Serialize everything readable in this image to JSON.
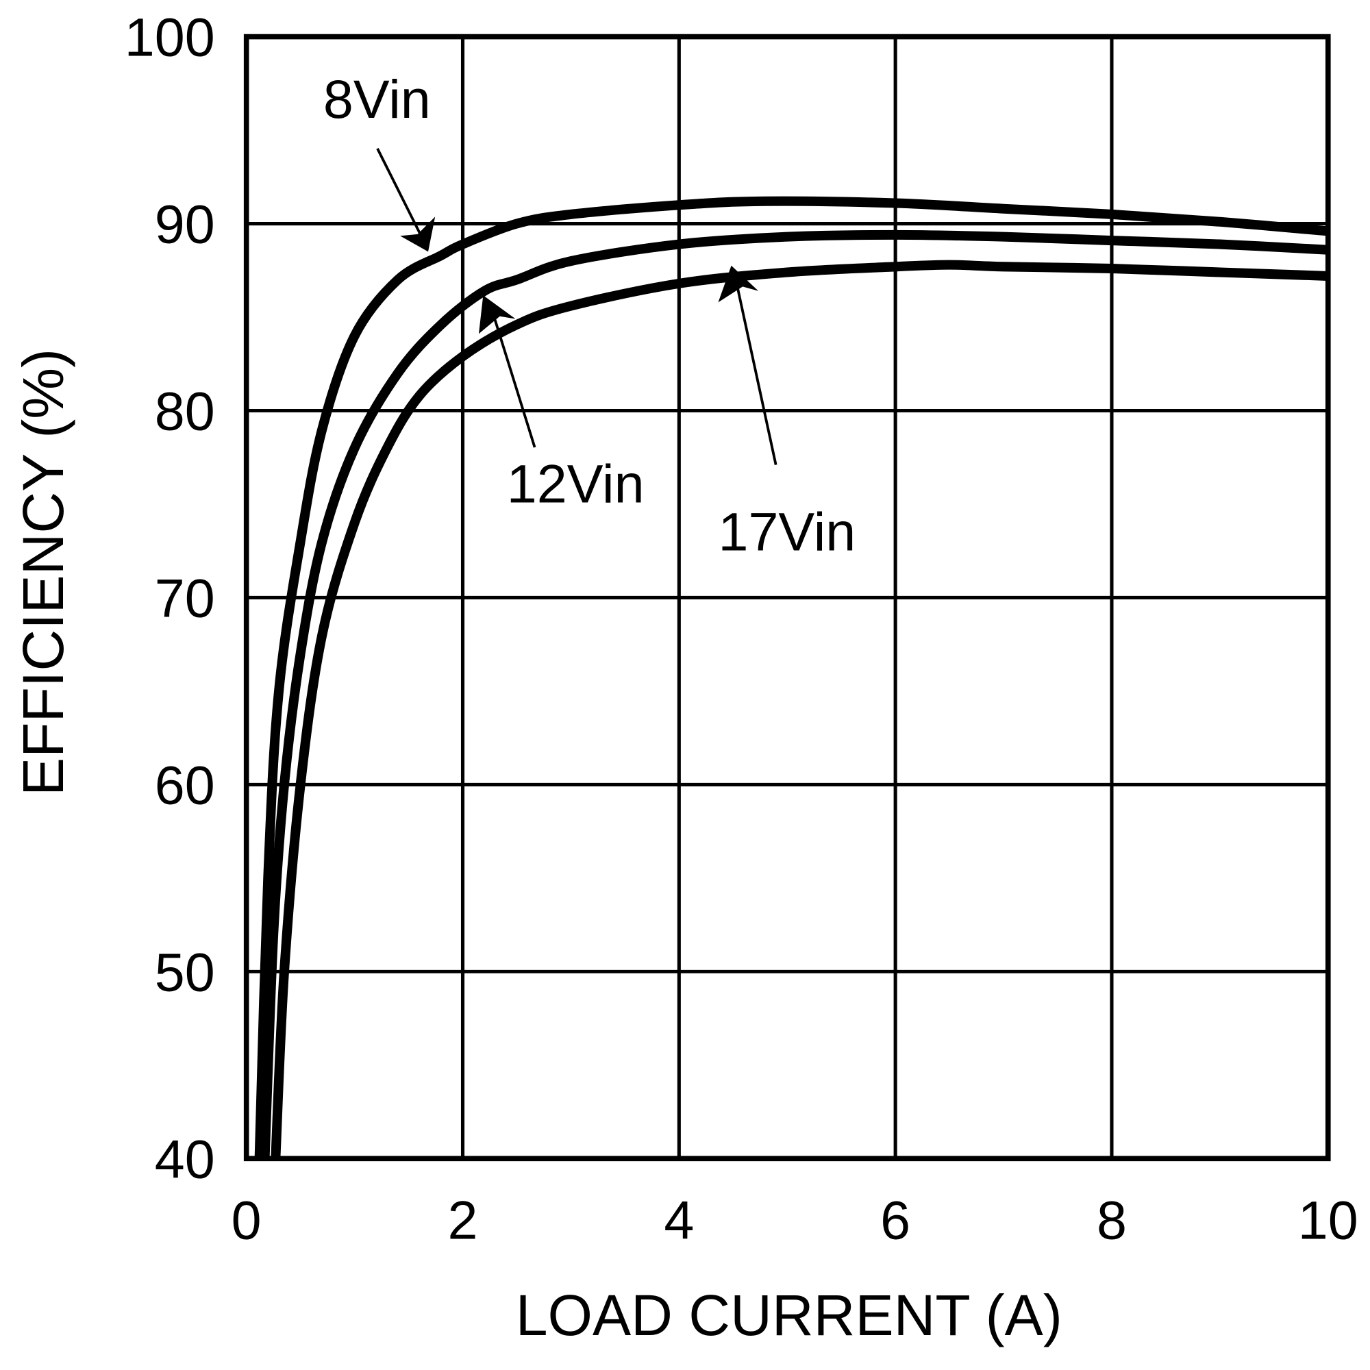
{
  "chart_data": {
    "type": "line",
    "title": "",
    "xlabel": "LOAD CURRENT (A)",
    "ylabel": "EFFICIENCY (%)",
    "xlim": [
      0,
      10
    ],
    "ylim": [
      40,
      100
    ],
    "xticks": [
      "0",
      "2",
      "4",
      "6",
      "8",
      "10"
    ],
    "yticks": [
      "40",
      "50",
      "60",
      "70",
      "80",
      "90",
      "100"
    ],
    "grid": true,
    "legend": "inline annotations with arrows",
    "series": [
      {
        "name": "8Vin",
        "x": [
          0.12,
          0.2,
          0.3,
          0.5,
          0.7,
          1.0,
          1.4,
          1.8,
          2.0,
          2.5,
          3.0,
          4.0,
          4.8,
          6.0,
          7.0,
          8.0,
          9.0,
          10.0
        ],
        "y": [
          40,
          55,
          65,
          73,
          79,
          84,
          87,
          88.3,
          88.9,
          90.0,
          90.5,
          91.0,
          91.2,
          91.1,
          90.8,
          90.5,
          90.1,
          89.6
        ]
      },
      {
        "name": "12Vin",
        "x": [
          0.17,
          0.25,
          0.35,
          0.5,
          0.7,
          1.0,
          1.4,
          1.8,
          2.2,
          2.5,
          3.0,
          4.0,
          5.0,
          6.0,
          7.0,
          8.0,
          9.0,
          10.0
        ],
        "y": [
          40,
          52,
          60,
          67,
          73,
          78,
          82,
          84.6,
          86.4,
          87.0,
          88.0,
          88.9,
          89.3,
          89.4,
          89.3,
          89.1,
          88.9,
          88.6
        ]
      },
      {
        "name": "17Vin",
        "x": [
          0.27,
          0.35,
          0.5,
          0.7,
          1.0,
          1.3,
          1.6,
          2.0,
          2.5,
          3.0,
          4.0,
          5.0,
          6.0,
          6.5,
          7.0,
          8.0,
          9.0,
          10.0
        ],
        "y": [
          40,
          50,
          60,
          68,
          74,
          78,
          80.8,
          82.9,
          84.6,
          85.6,
          86.8,
          87.4,
          87.7,
          87.8,
          87.7,
          87.6,
          87.4,
          87.2
        ]
      }
    ],
    "annotations": [
      {
        "text": "8Vin",
        "points_to": [
          1.7,
          88.2
        ]
      },
      {
        "text": "12Vin",
        "points_to": [
          2.2,
          86.4
        ]
      },
      {
        "text": "17Vin",
        "points_to": [
          4.5,
          87.2
        ]
      }
    ]
  },
  "labels": {
    "x": "LOAD CURRENT (A)",
    "y": "EFFICIENCY (%)",
    "xticks": [
      "0",
      "2",
      "4",
      "6",
      "8",
      "10"
    ],
    "yticks": [
      "40",
      "50",
      "60",
      "70",
      "80",
      "90",
      "100"
    ],
    "ann8": "8Vin",
    "ann12": "12Vin",
    "ann17": "17Vin"
  }
}
